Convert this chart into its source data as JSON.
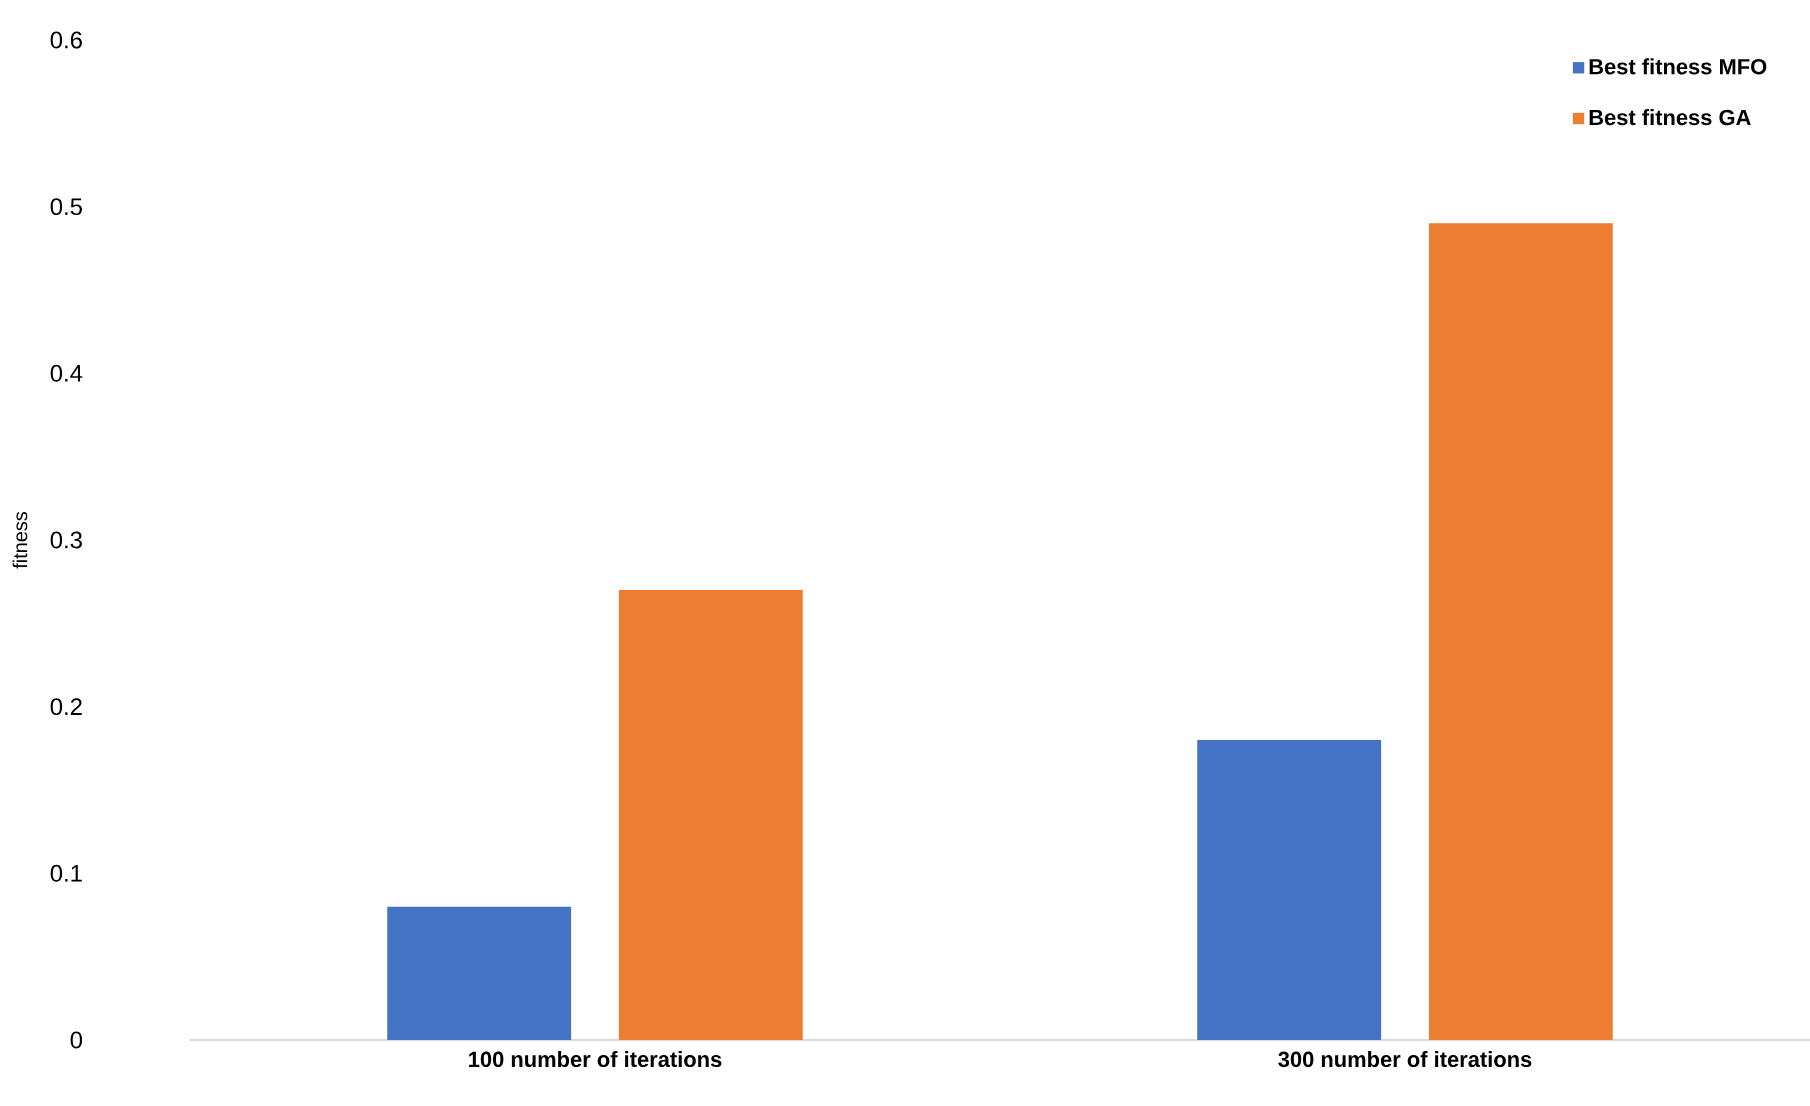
{
  "chart_data": {
    "type": "bar",
    "ylabel": "fitness",
    "categories": [
      "100 number of iterations",
      "300 number of iterations"
    ],
    "series": [
      {
        "name": "Best fitness MFO",
        "color": "#4472c4",
        "values": [
          0.08,
          0.18
        ]
      },
      {
        "name": "Best fitness GA",
        "color": "#ed7d31",
        "values": [
          0.27,
          0.49
        ]
      }
    ],
    "ylim": [
      0,
      0.6
    ],
    "yticks": [
      0,
      0.1,
      0.2,
      0.3,
      0.4,
      0.5,
      0.6
    ],
    "legend": "top right"
  }
}
